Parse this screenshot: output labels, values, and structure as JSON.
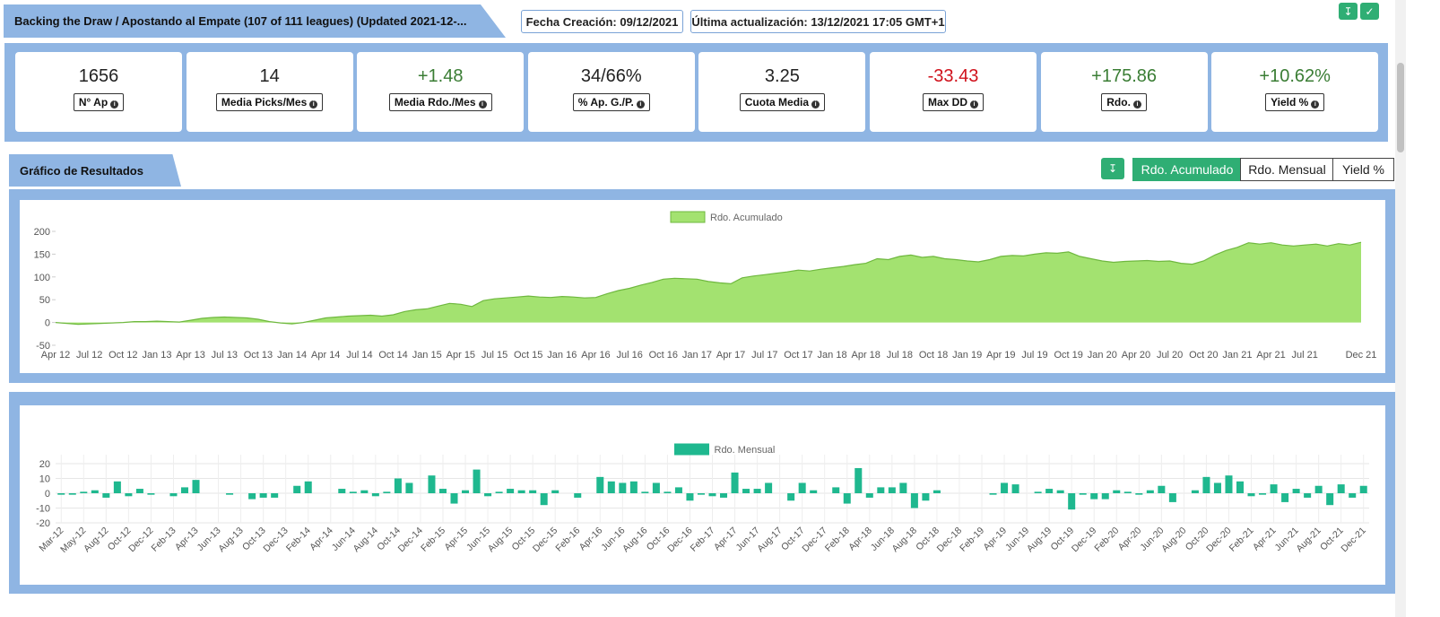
{
  "header": {
    "title": "Backing the Draw / Apostando al Empate (107 of 111 leagues) (Updated 2021-12-...",
    "created": "Fecha Creación: 09/12/2021",
    "updated": "Última actualización: 13/12/2021 17:05 GMT+1"
  },
  "stats": [
    {
      "value": "1656",
      "label": "N° Ap",
      "color": "#222222"
    },
    {
      "value": "14",
      "label": "Media Picks/Mes",
      "color": "#222222"
    },
    {
      "value": "+1.48",
      "label": "Media Rdo./Mes",
      "color": "#3a7d34"
    },
    {
      "value": "34/66%",
      "label": "% Ap. G./P.",
      "color": "#222222"
    },
    {
      "value": "3.25",
      "label": "Cuota Media",
      "color": "#222222"
    },
    {
      "value": "-33.43",
      "label": "Max DD",
      "color": "#d0111b"
    },
    {
      "value": "+175.86",
      "label": "Rdo.",
      "color": "#3a7d34"
    },
    {
      "value": "+10.62%",
      "label": "Yield %",
      "color": "#3a7d34"
    }
  ],
  "section": {
    "title": "Gráfico de Resultados",
    "tabs": [
      "Rdo. Acumulado",
      "Rdo. Mensual",
      "Yield %"
    ],
    "active_tab": 0
  },
  "chart_data": [
    {
      "type": "area",
      "grid": false,
      "legend": "top",
      "categories": [
        "Apr 12",
        null,
        null,
        "Jul 12",
        null,
        null,
        "Oct 12",
        null,
        null,
        "Jan 13",
        null,
        null,
        "Apr 13",
        null,
        null,
        "Jul 13",
        null,
        null,
        "Oct 13",
        null,
        null,
        "Jan 14",
        null,
        null,
        "Apr 14",
        null,
        null,
        "Jul 14",
        null,
        null,
        "Oct 14",
        null,
        null,
        "Jan 15",
        null,
        null,
        "Apr 15",
        null,
        null,
        "Jul 15",
        null,
        null,
        "Oct 15",
        null,
        null,
        "Jan 16",
        null,
        null,
        "Apr 16",
        null,
        null,
        "Jul 16",
        null,
        null,
        "Oct 16",
        null,
        null,
        "Jan 17",
        null,
        null,
        "Apr 17",
        null,
        null,
        "Jul 17",
        null,
        null,
        "Oct 17",
        null,
        null,
        "Jan 18",
        null,
        null,
        "Apr 18",
        null,
        null,
        "Jul 18",
        null,
        null,
        "Oct 18",
        null,
        null,
        "Jan 19",
        null,
        null,
        "Apr 19",
        null,
        null,
        "Jul 19",
        null,
        null,
        "Oct 19",
        null,
        null,
        "Jan 20",
        null,
        null,
        "Apr 20",
        null,
        null,
        "Jul 20",
        null,
        null,
        "Oct 20",
        null,
        null,
        "Jan 21",
        null,
        null,
        "Apr 21",
        null,
        null,
        "Jul 21",
        null,
        null,
        null,
        null,
        "Dec 21"
      ],
      "series": [
        {
          "name": "Rdo. Acumulado",
          "color": "#a3e270",
          "stroke": "#6fb83f",
          "values": [
            0,
            -2,
            -4,
            -3,
            -2,
            -1,
            0,
            2,
            2,
            3,
            2,
            1,
            5,
            9,
            11,
            12,
            11,
            10,
            7,
            2,
            -1,
            -3,
            0,
            5,
            10,
            12,
            14,
            15,
            16,
            14,
            17,
            24,
            28,
            30,
            36,
            42,
            40,
            35,
            48,
            52,
            54,
            56,
            58,
            56,
            55,
            57,
            56,
            54,
            55,
            63,
            70,
            75,
            82,
            88,
            95,
            97,
            96,
            95,
            90,
            87,
            85,
            98,
            102,
            105,
            108,
            111,
            115,
            113,
            117,
            120,
            123,
            127,
            130,
            140,
            138,
            145,
            148,
            143,
            145,
            140,
            138,
            135,
            133,
            138,
            145,
            147,
            146,
            150,
            153,
            152,
            155,
            145,
            140,
            135,
            132,
            134,
            135,
            136,
            134,
            135,
            130,
            128,
            135,
            148,
            158,
            165,
            175,
            172,
            175,
            170,
            168,
            170,
            172,
            168,
            173,
            170,
            176
          ]
        }
      ],
      "ylim": [
        -50,
        200
      ],
      "yticks": [
        -50,
        0,
        50,
        100,
        150,
        200
      ]
    },
    {
      "type": "bar",
      "grid": true,
      "legend": "top",
      "categories": [
        "Mar-12",
        null,
        "May-12",
        null,
        "Aug-12",
        null,
        "Oct-12",
        null,
        "Dec-12",
        null,
        "Feb-13",
        null,
        "Apr-13",
        null,
        "Jun-13",
        null,
        "Aug-13",
        null,
        "Oct-13",
        null,
        "Dec-13",
        null,
        "Feb-14",
        null,
        "Apr-14",
        null,
        "Jun-14",
        null,
        "Aug-14",
        null,
        "Oct-14",
        null,
        "Dec-14",
        null,
        "Feb-15",
        null,
        "Apr-15",
        null,
        "Jun-15",
        null,
        "Aug-15",
        null,
        "Oct-15",
        null,
        "Dec-15",
        null,
        "Feb-16",
        null,
        "Apr-16",
        null,
        "Jun-16",
        null,
        "Aug-16",
        null,
        "Oct-16",
        null,
        "Dec-16",
        null,
        "Feb-17",
        null,
        "Apr-17",
        null,
        "Jun-17",
        null,
        "Aug-17",
        null,
        "Oct-17",
        null,
        "Dec-17",
        null,
        "Feb-18",
        null,
        "Apr-18",
        null,
        "Jun-18",
        null,
        "Aug-18",
        null,
        "Oct-18",
        null,
        "Dec-18",
        null,
        "Feb-19",
        null,
        "Apr-19",
        null,
        "Jun-19",
        null,
        "Aug-19",
        null,
        "Oct-19",
        null,
        "Dec-19",
        null,
        "Feb-20",
        null,
        "Apr-20",
        null,
        "Jun-20",
        null,
        "Aug-20",
        null,
        "Oct-20",
        null,
        "Dec-20",
        null,
        "Feb-21",
        null,
        "Apr-21",
        null,
        "Jun-21",
        null,
        "Aug-21",
        null,
        "Oct-21",
        null,
        "Dec-21"
      ],
      "series": [
        {
          "name": "Rdo. Mensual",
          "color": "#1fb88f",
          "values": [
            -1,
            -1,
            1,
            2,
            -3,
            8,
            -2,
            3,
            -1,
            0,
            -2,
            4,
            9,
            0,
            0,
            -1,
            0,
            -4,
            -3,
            -3,
            0,
            5,
            8,
            0,
            0,
            3,
            1,
            2,
            -2,
            1,
            10,
            7,
            0,
            12,
            3,
            -7,
            2,
            16,
            -2,
            1,
            3,
            2,
            2,
            -8,
            2,
            0,
            -3,
            0,
            11,
            8,
            7,
            8,
            1,
            7,
            1,
            4,
            -5,
            -1,
            -2,
            -3,
            14,
            3,
            3,
            7,
            0,
            -5,
            7,
            2,
            0,
            4,
            -7,
            17,
            -3,
            4,
            4,
            7,
            -10,
            -5,
            2,
            0,
            0,
            0,
            0,
            -1,
            7,
            6,
            0,
            1,
            3,
            2,
            -11,
            -1,
            -4,
            -4,
            2,
            1,
            -1,
            2,
            5,
            -6,
            0,
            2,
            11,
            7,
            12,
            8,
            -2,
            -1,
            6,
            -6,
            3,
            -3,
            5,
            -8,
            6,
            -3,
            5
          ]
        }
      ],
      "ylim": [
        -20,
        20
      ],
      "yticks": [
        -20,
        -10,
        0,
        10,
        20
      ]
    }
  ]
}
